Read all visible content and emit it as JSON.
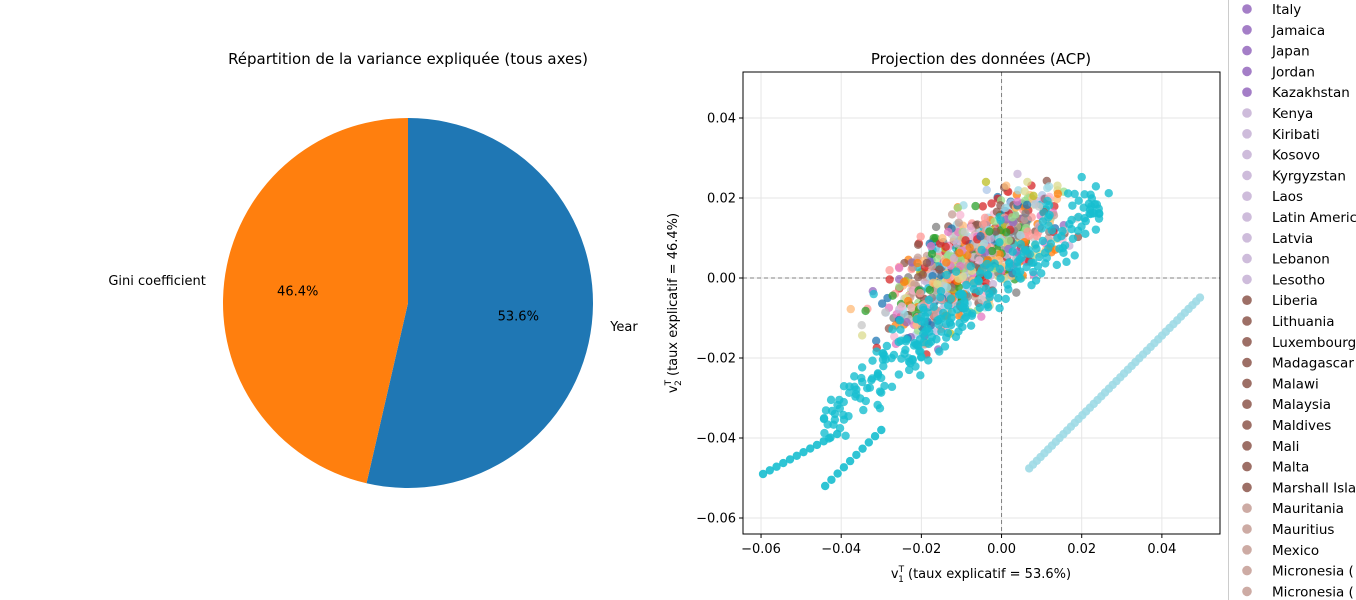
{
  "colors": {
    "year": "#1f77b4",
    "gini": "#ff7f0e",
    "axis": "#000000",
    "grid": "#e6e6e6",
    "refline": "#808080",
    "palette": [
      "#1f77b4",
      "#aec7e8",
      "#ff7f0e",
      "#ffbb78",
      "#2ca02c",
      "#98df8a",
      "#d62728",
      "#ff9896",
      "#9467bd",
      "#c5b0d5",
      "#8c564b",
      "#c49c94",
      "#e377c2",
      "#f7b6d2",
      "#7f7f7f",
      "#c7c7c7",
      "#bcbd22",
      "#dbdb8d",
      "#17becf",
      "#9edae5"
    ]
  },
  "chart_data": [
    {
      "type": "pie",
      "title": "Répartition de la variance expliquée (tous axes)",
      "labels": [
        "Year",
        "Gini coefficient"
      ],
      "values": [
        53.6,
        46.4
      ],
      "pct_labels": [
        "53.6%",
        "46.4%"
      ],
      "start_angle_deg": 90,
      "counterclockwise": false
    },
    {
      "type": "scatter",
      "title": "Projection des données (ACP)",
      "xlabel_prefix": "v",
      "xlabel_sub": "1",
      "xlabel_text": " (taux explicatif = 53.6%)",
      "ylabel_prefix": "v",
      "ylabel_sub": "2",
      "ylabel_text": " (taux explicatif = 46.4%)",
      "sup": "T",
      "xlim": [
        -0.0645,
        0.0545
      ],
      "ylim": [
        -0.064,
        0.0515
      ],
      "xticks": [
        -0.06,
        -0.04,
        -0.02,
        0.0,
        0.02,
        0.04
      ],
      "xtick_labels": [
        "−0.06",
        "−0.04",
        "−0.02",
        "0.00",
        "0.02",
        "0.04"
      ],
      "yticks": [
        -0.06,
        -0.04,
        -0.02,
        0.0,
        0.02,
        0.04
      ],
      "ytick_labels": [
        "−0.06",
        "−0.04",
        "−0.02",
        "0.00",
        "0.02",
        "0.04"
      ],
      "grid": true,
      "reference_lines": {
        "x": 0,
        "y": 0
      },
      "legend": "right, outside",
      "series_note": "one series per country",
      "lines": [
        {
          "from": [
            0.0069,
            -0.0476
          ],
          "to": [
            0.0495,
            -0.0049
          ],
          "n": 46,
          "color": "#9edae5"
        },
        {
          "from": [
            -0.0595,
            -0.049
          ],
          "to": [
            -0.041,
            -0.039
          ],
          "n": 12,
          "color": "#17becf"
        },
        {
          "from": [
            -0.044,
            -0.052
          ],
          "to": [
            -0.03,
            -0.038
          ],
          "n": 10,
          "color": "#17becf"
        }
      ],
      "cloud": {
        "count": 900,
        "center": [
          -0.008,
          0.004
        ],
        "spread_major": 0.022,
        "spread_minor": 0.009,
        "slope": 0.8
      }
    }
  ],
  "legend_items": [
    {
      "label": "Italy",
      "color": "#9467bd"
    },
    {
      "label": "Jamaica",
      "color": "#9467bd"
    },
    {
      "label": "Japan",
      "color": "#9467bd"
    },
    {
      "label": "Jordan",
      "color": "#9467bd"
    },
    {
      "label": "Kazakhstan",
      "color": "#9467bd"
    },
    {
      "label": "Kenya",
      "color": "#c5b0d5"
    },
    {
      "label": "Kiribati",
      "color": "#c5b0d5"
    },
    {
      "label": "Kosovo",
      "color": "#c5b0d5"
    },
    {
      "label": "Kyrgyzstan",
      "color": "#c5b0d5"
    },
    {
      "label": "Laos",
      "color": "#c5b0d5"
    },
    {
      "label": "Latin Americ",
      "color": "#c5b0d5"
    },
    {
      "label": "Latvia",
      "color": "#c5b0d5"
    },
    {
      "label": "Lebanon",
      "color": "#c5b0d5"
    },
    {
      "label": "Lesotho",
      "color": "#c5b0d5"
    },
    {
      "label": "Liberia",
      "color": "#8c564b"
    },
    {
      "label": "Lithuania",
      "color": "#8c564b"
    },
    {
      "label": "Luxembourg",
      "color": "#8c564b"
    },
    {
      "label": "Madagascar",
      "color": "#8c564b"
    },
    {
      "label": "Malawi",
      "color": "#8c564b"
    },
    {
      "label": "Malaysia",
      "color": "#8c564b"
    },
    {
      "label": "Maldives",
      "color": "#8c564b"
    },
    {
      "label": "Mali",
      "color": "#8c564b"
    },
    {
      "label": "Malta",
      "color": "#8c564b"
    },
    {
      "label": "Marshall Isla",
      "color": "#8c564b"
    },
    {
      "label": "Mauritania",
      "color": "#c49c94"
    },
    {
      "label": "Mauritius",
      "color": "#c49c94"
    },
    {
      "label": "Mexico",
      "color": "#c49c94"
    },
    {
      "label": "Micronesia (",
      "color": "#c49c94"
    },
    {
      "label": "Micronesia (",
      "color": "#c49c94"
    }
  ]
}
